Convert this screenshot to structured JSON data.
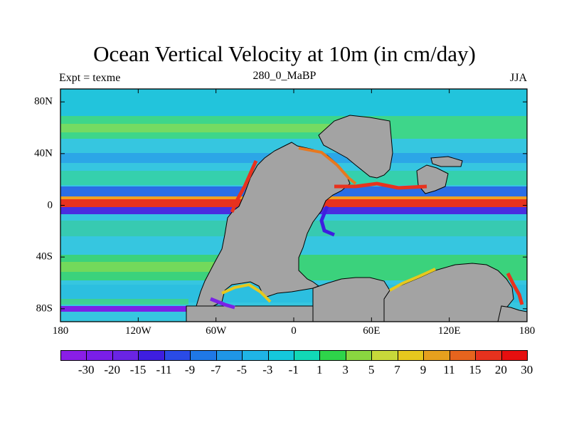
{
  "header": {
    "title": "Ocean Vertical Velocity at 10m (in cm/day)",
    "left_label": "Expt = texme",
    "center_label": "280_0_MaBP",
    "right_label": "JJA"
  },
  "axes": {
    "x_ticks": [
      "180",
      "120W",
      "60W",
      "0",
      "60E",
      "120E",
      "180"
    ],
    "x_values": [
      -180,
      -120,
      -60,
      0,
      60,
      120,
      180
    ],
    "y_ticks": [
      "80N",
      "40N",
      "0",
      "40S",
      "80S"
    ],
    "y_values": [
      80,
      40,
      0,
      -40,
      -80
    ],
    "lon_range": [
      -180,
      180
    ],
    "lat_range": [
      -90,
      90
    ]
  },
  "colorbar": {
    "labels": [
      "-30",
      "-20",
      "-15",
      "-11",
      "-9",
      "-7",
      "-5",
      "-3",
      "-1",
      "1",
      "3",
      "5",
      "7",
      "9",
      "11",
      "15",
      "20",
      "30"
    ],
    "colors": [
      "#8a1ee6",
      "#7a1ee8",
      "#6a24e4",
      "#3e1ee0",
      "#2a4be6",
      "#1f78e6",
      "#1f96e6",
      "#1fb4e6",
      "#15c8dc",
      "#12d8b6",
      "#2ed44a",
      "#8ad640",
      "#c8d83a",
      "#e6c81e",
      "#e6a01e",
      "#e6641e",
      "#e6321e",
      "#e60f0f"
    ]
  },
  "colors": {
    "land": "#a3a3a3",
    "background_field": "#36c6e0",
    "coastline": "#000000"
  }
}
